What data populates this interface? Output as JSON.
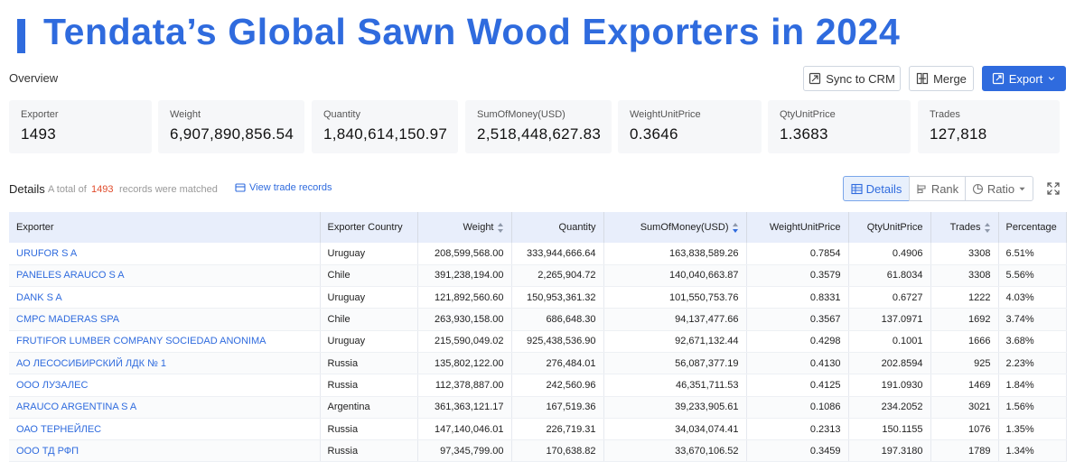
{
  "banner": {
    "title": "Tendata’s Global Sawn Wood Exporters in 2024"
  },
  "overview": {
    "label": "Overview"
  },
  "toolbar": {
    "sync_label": "Sync to CRM",
    "merge_label": "Merge",
    "export_label": "Export"
  },
  "stats": [
    {
      "label": "Exporter",
      "value": "1493"
    },
    {
      "label": "Weight",
      "value": "6,907,890,856.54"
    },
    {
      "label": "Quantity",
      "value": "1,840,614,150.97"
    },
    {
      "label": "SumOfMoney(USD)",
      "value": "2,518,448,627.83"
    },
    {
      "label": "WeightUnitPrice",
      "value": "0.3646"
    },
    {
      "label": "QtyUnitPrice",
      "value": "1.3683"
    },
    {
      "label": "Trades",
      "value": "127,818"
    }
  ],
  "details": {
    "label": "Details",
    "total_prefix": "A total of",
    "count": "1493",
    "total_suffix": "records were matched",
    "view_trade_records": "View trade records"
  },
  "view_toggle": {
    "details": "Details",
    "rank": "Rank",
    "ratio": "Ratio"
  },
  "table": {
    "headers": [
      "Exporter",
      "Exporter Country",
      "Weight",
      "Quantity",
      "SumOfMoney(USD)",
      "WeightUnitPrice",
      "QtyUnitPrice",
      "Trades",
      "Percentage"
    ],
    "rows": [
      [
        "URUFOR S A",
        "Uruguay",
        "208,599,568.00",
        "333,944,666.64",
        "163,838,589.26",
        "0.7854",
        "0.4906",
        "3308",
        "6.51%"
      ],
      [
        "PANELES ARAUCO S A",
        "Chile",
        "391,238,194.00",
        "2,265,904.72",
        "140,040,663.87",
        "0.3579",
        "61.8034",
        "3308",
        "5.56%"
      ],
      [
        "DANK S A",
        "Uruguay",
        "121,892,560.60",
        "150,953,361.32",
        "101,550,753.76",
        "0.8331",
        "0.6727",
        "1222",
        "4.03%"
      ],
      [
        "CMPC MADERAS SPA",
        "Chile",
        "263,930,158.00",
        "686,648.30",
        "94,137,477.66",
        "0.3567",
        "137.0971",
        "1692",
        "3.74%"
      ],
      [
        "FRUTIFOR LUMBER COMPANY SOCIEDAD ANONIMA",
        "Uruguay",
        "215,590,049.02",
        "925,438,536.90",
        "92,671,132.44",
        "0.4298",
        "0.1001",
        "1666",
        "3.68%"
      ],
      [
        "АО ЛЕСОСИБИРСКИЙ ЛДК № 1",
        "Russia",
        "135,802,122.00",
        "276,484.01",
        "56,087,377.19",
        "0.4130",
        "202.8594",
        "925",
        "2.23%"
      ],
      [
        "ООО ЛУЗАЛЕС",
        "Russia",
        "112,378,887.00",
        "242,560.96",
        "46,351,711.53",
        "0.4125",
        "191.0930",
        "1469",
        "1.84%"
      ],
      [
        "ARAUCO ARGENTINA S A",
        "Argentina",
        "361,363,121.17",
        "167,519.36",
        "39,233,905.61",
        "0.1086",
        "234.2052",
        "3021",
        "1.56%"
      ],
      [
        "ОАО ТЕРНЕЙЛЕС",
        "Russia",
        "147,140,046.01",
        "226,719.31",
        "34,034,074.41",
        "0.2313",
        "150.1155",
        "1076",
        "1.35%"
      ],
      [
        "ООО ТД РФП",
        "Russia",
        "97,345,799.00",
        "170,638.82",
        "33,670,106.52",
        "0.3459",
        "197.3180",
        "1789",
        "1.34%"
      ]
    ]
  },
  "colors": {
    "accent": "#2f6bde",
    "count": "#e04b2b",
    "header_bg": "#e8eefb"
  }
}
